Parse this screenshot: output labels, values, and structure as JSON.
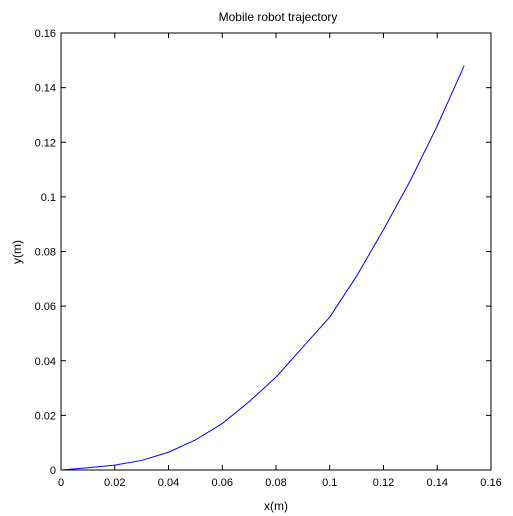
{
  "chart_data": {
    "type": "line",
    "title": "Mobile robot trajectory",
    "xlabel": "x(m)",
    "ylabel": "y(m)",
    "xlim": [
      0,
      0.16
    ],
    "ylim": [
      0,
      0.16
    ],
    "xticks": [
      "0",
      "0.02",
      "0.04",
      "0.06",
      "0.08",
      "0.1",
      "0.12",
      "0.14",
      "0.16"
    ],
    "yticks": [
      "0",
      "0.02",
      "0.04",
      "0.06",
      "0.08",
      "0.1",
      "0.12",
      "0.14",
      "0.16"
    ],
    "xtick_values": [
      0,
      0.02,
      0.04,
      0.06,
      0.08,
      0.1,
      0.12,
      0.14,
      0.16
    ],
    "ytick_values": [
      0,
      0.02,
      0.04,
      0.06,
      0.08,
      0.1,
      0.12,
      0.14,
      0.16
    ],
    "grid": false,
    "legend": "none",
    "series": [
      {
        "color": "#0000ff",
        "x": [
          0,
          0.01,
          0.02,
          0.03,
          0.04,
          0.05,
          0.06,
          0.07,
          0.08,
          0.09,
          0.1,
          0.11,
          0.12,
          0.13,
          0.14,
          0.15
        ],
        "y": [
          0,
          0.0008,
          0.0018,
          0.0035,
          0.0065,
          0.011,
          0.017,
          0.025,
          0.034,
          0.045,
          0.056,
          0.071,
          0.088,
          0.106,
          0.126,
          0.148
        ]
      }
    ]
  }
}
